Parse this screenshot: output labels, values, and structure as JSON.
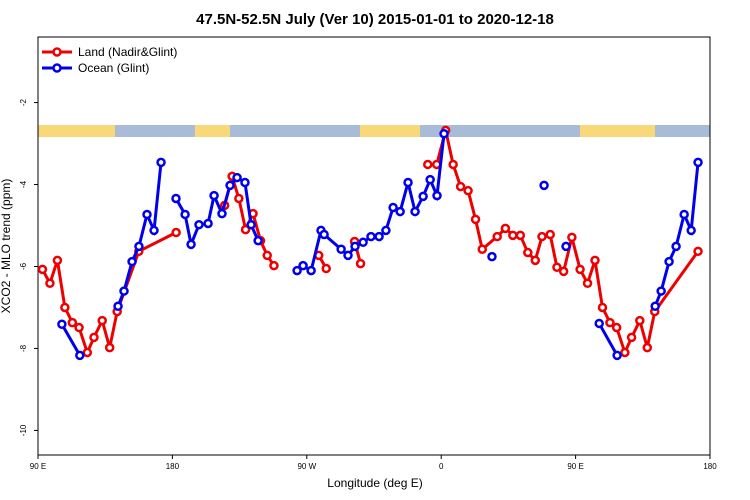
{
  "chart_data": {
    "type": "line",
    "title": "47.5N-52.5N July (Ver 10)   2015-01-01 to 2020-12-18",
    "x_label": "Longitude (deg E)",
    "y_label": "XCO2 - MLO trend (ppm)",
    "xlim": [
      90,
      540
    ],
    "ylim": [
      -10.6,
      -0.4
    ],
    "xticks": [
      {
        "value": 90,
        "label": "90 E"
      },
      180,
      {
        "value": 270,
        "label": "90 W"
      },
      {
        "value": 360,
        "label": "0"
      },
      {
        "value": 450,
        "label": "90 E"
      },
      {
        "value": 540,
        "label": "180"
      }
    ],
    "yticks": [
      -10,
      -8,
      -6,
      -4,
      -2
    ],
    "legend": "top-left",
    "series": [
      {
        "name": "Land (Nadir&Glint)",
        "color": "#ee0000",
        "x": [
          93,
          98,
          103,
          108,
          113,
          117.5,
          123,
          127.5,
          133,
          138,
          143,
          157.5,
          182.5,
          null,
          215,
          220,
          224.5,
          229,
          234,
          239,
          243.5,
          248,
          null,
          278,
          283,
          null,
          302,
          306,
          null,
          351,
          357,
          363,
          368,
          373,
          378,
          383,
          387.5,
          397.5,
          403,
          408,
          413,
          418,
          423,
          427.5,
          433,
          437.5,
          442,
          447.5,
          453,
          458,
          463,
          468,
          473,
          477.5,
          483,
          487.5,
          493,
          498,
          503,
          532
        ],
        "values": [
          -6.07,
          -6.41,
          -5.85,
          -7.0,
          -7.37,
          -7.49,
          -8.1,
          -7.73,
          -7.32,
          -7.98,
          -7.1,
          -5.63,
          -5.17,
          null,
          -4.51,
          -3.8,
          -4.34,
          -5.1,
          -4.71,
          -5.37,
          -5.73,
          -5.98,
          null,
          -5.73,
          -6.05,
          null,
          -5.39,
          -5.93,
          null,
          -3.51,
          -3.51,
          -2.68,
          -3.51,
          -4.05,
          -4.15,
          -4.85,
          -5.58,
          -5.27,
          -5.07,
          -5.24,
          -5.24,
          -5.66,
          -5.85,
          -5.27,
          -5.22,
          -6.02,
          -6.12,
          -5.29,
          -6.07,
          -6.41,
          -5.85,
          -7.0,
          -7.37,
          -7.49,
          -8.1,
          -7.73,
          -7.32,
          -7.98,
          -7.1,
          -5.63
        ]
      },
      {
        "name": "Ocean (Glint)",
        "color": "#0000ee",
        "x": [
          106,
          118,
          null,
          143.6,
          147.6,
          153,
          157.6,
          163,
          167.7,
          172.4,
          null,
          182.4,
          188.5,
          192.5,
          197.8,
          203.9,
          207.9,
          213.2,
          218.6,
          223.3,
          228.6,
          232.7,
          237.4,
          null,
          263.5,
          267.5,
          272.9,
          279.5,
          281.6,
          293,
          297.6,
          302.3,
          307.7,
          313,
          318.4,
          323,
          327.8,
          332.5,
          337.8,
          342.5,
          347.9,
          352.6,
          357.2,
          361.9,
          null,
          394,
          null,
          428.9,
          null,
          443.6,
          null,
          465.8,
          477.8,
          null,
          503.3,
          507.3,
          512.6,
          517.3,
          522.7,
          527.4,
          532
        ],
        "values": [
          -7.41,
          -8.17,
          null,
          -6.97,
          -6.6,
          -5.88,
          -5.51,
          -4.73,
          -5.12,
          -3.46,
          null,
          -4.34,
          -4.73,
          -5.46,
          -4.98,
          -4.95,
          -4.27,
          -4.71,
          -4.02,
          -3.83,
          -3.95,
          -4.98,
          -5.37,
          null,
          -6.1,
          -5.98,
          -6.1,
          -5.12,
          -5.22,
          -5.58,
          -5.73,
          -5.51,
          -5.41,
          -5.27,
          -5.27,
          -5.12,
          -4.56,
          -4.66,
          -3.95,
          -4.66,
          -4.29,
          -3.88,
          -4.27,
          -2.76,
          null,
          -5.76,
          null,
          -4.02,
          null,
          -5.51,
          null,
          -7.39,
          -8.17,
          null,
          -6.97,
          -6.6,
          -5.88,
          -5.51,
          -4.73,
          -5.12,
          -3.46
        ]
      }
    ]
  }
}
